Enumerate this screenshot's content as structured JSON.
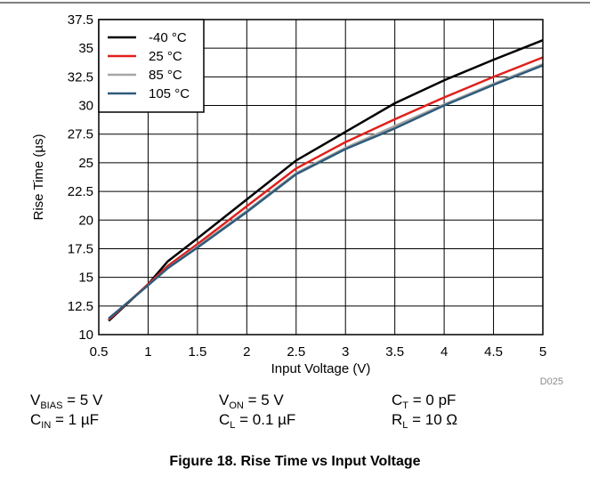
{
  "chart_data": {
    "type": "line",
    "title": "",
    "xlabel": "Input Voltage (V)",
    "ylabel": "Rise Time (µs)",
    "xlim": [
      0.5,
      5
    ],
    "ylim": [
      10,
      37.5
    ],
    "xticks": [
      "0.5",
      "1",
      "1.5",
      "2",
      "2.5",
      "3",
      "3.5",
      "4",
      "4.5",
      "5"
    ],
    "yticks": [
      "10",
      "12.5",
      "15",
      "17.5",
      "20",
      "22.5",
      "25",
      "27.5",
      "30",
      "32.5",
      "35",
      "37.5"
    ],
    "grid": true,
    "legend_position": "top-left",
    "series": [
      {
        "name": "-40 °C",
        "color": "#000000",
        "x": [
          0.6,
          1.0,
          1.2,
          1.5,
          2.0,
          2.5,
          3.0,
          3.5,
          4.0,
          4.5,
          5.0
        ],
        "y": [
          11.2,
          14.4,
          16.4,
          18.4,
          21.8,
          25.2,
          27.7,
          30.2,
          32.2,
          34.0,
          35.7
        ]
      },
      {
        "name": "25 °C",
        "color": "#e0201b",
        "x": [
          0.6,
          1.0,
          1.2,
          1.5,
          2.0,
          2.5,
          3.0,
          3.5,
          4.0,
          4.5,
          5.0
        ],
        "y": [
          11.3,
          14.4,
          16.0,
          17.9,
          21.2,
          24.5,
          26.8,
          28.8,
          30.7,
          32.5,
          34.2
        ]
      },
      {
        "name": "85 °C",
        "color": "#a6a6a6",
        "x": [
          0.6,
          1.0,
          1.2,
          1.5,
          2.0,
          2.5,
          3.0,
          3.5,
          4.0,
          4.5,
          5.0
        ],
        "y": [
          11.4,
          14.3,
          15.8,
          17.7,
          20.8,
          24.1,
          26.3,
          28.2,
          30.1,
          31.9,
          33.6
        ]
      },
      {
        "name": "105 °C",
        "color": "#2f5b7a",
        "x": [
          0.6,
          1.0,
          1.2,
          1.5,
          2.0,
          2.5,
          3.0,
          3.5,
          4.0,
          4.5,
          5.0
        ],
        "y": [
          11.4,
          14.3,
          15.8,
          17.6,
          20.7,
          24.0,
          26.2,
          28.0,
          30.0,
          31.8,
          33.5
        ]
      }
    ],
    "annotation": "D025"
  },
  "conditions": [
    {
      "name": "V",
      "sub": "BIAS",
      "value": " = 5 V"
    },
    {
      "name": "V",
      "sub": "ON",
      "value": " = 5 V"
    },
    {
      "name": "C",
      "sub": "T",
      "value": " = 0 pF"
    },
    {
      "name": "C",
      "sub": "IN",
      "value": " = 1 µF"
    },
    {
      "name": "C",
      "sub": "L",
      "value": " = 0.1 µF"
    },
    {
      "name": "R",
      "sub": "L",
      "value": " = 10 Ω"
    }
  ],
  "caption": "Figure 18. Rise Time vs Input Voltage"
}
